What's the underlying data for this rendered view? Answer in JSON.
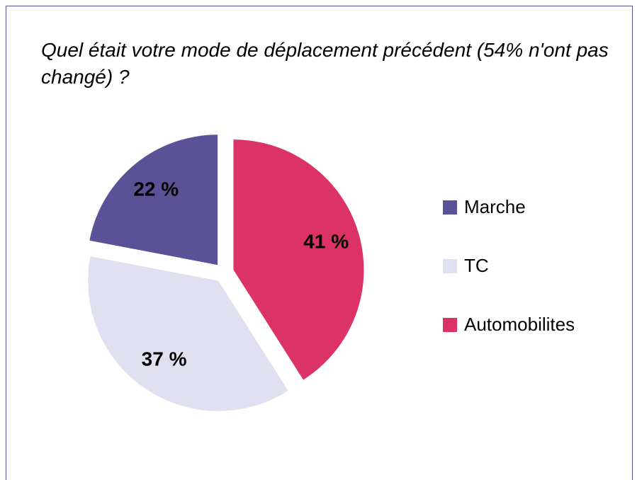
{
  "chart_data": {
    "type": "pie",
    "title": "Quel était votre mode de déplacement précédent (54% n'ont pas changé) ?",
    "categories": [
      "Marche",
      "TC",
      "Automobilites"
    ],
    "values": [
      22,
      37,
      41
    ],
    "value_labels": [
      "22 %",
      "37 %",
      "41 %"
    ],
    "colors": [
      "#5b5197",
      "#e1e0f1",
      "#dc3366"
    ],
    "legend": "right"
  }
}
